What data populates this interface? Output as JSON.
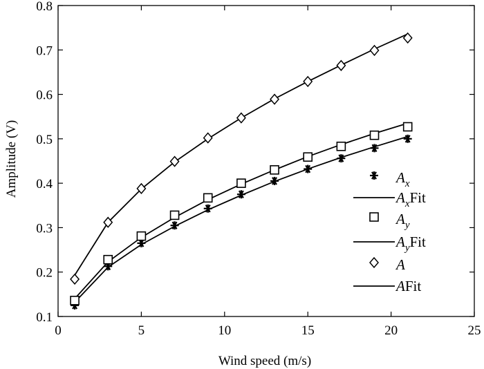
{
  "chart_data": {
    "type": "scatter",
    "xlabel": "Wind speed (m/s)",
    "ylabel": "Amplitude (V)",
    "xlim": [
      0,
      25
    ],
    "ylim": [
      0.1,
      0.8
    ],
    "xticks": [
      0,
      5,
      10,
      15,
      20,
      25
    ],
    "xtick_labels": [
      "0",
      "5",
      "10",
      "15",
      "20",
      "25"
    ],
    "yticks": [
      0.1,
      0.2,
      0.3,
      0.4,
      0.5,
      0.6,
      0.7,
      0.8
    ],
    "ytick_labels": [
      "0.1",
      "0.2",
      "0.3",
      "0.4",
      "0.5",
      "0.6",
      "0.7",
      "0.8"
    ],
    "grid": false,
    "legend_position": "right-middle",
    "legend": [
      {
        "main": "A",
        "sub": "x",
        "suffix": "",
        "kind": "marker",
        "marker": "asterisk"
      },
      {
        "main": "A",
        "sub": "x",
        "suffix": "Fit",
        "kind": "line",
        "marker": ""
      },
      {
        "main": "A",
        "sub": "y",
        "suffix": "",
        "kind": "marker",
        "marker": "square"
      },
      {
        "main": "A",
        "sub": "y",
        "suffix": "Fit",
        "kind": "line",
        "marker": ""
      },
      {
        "main": "A",
        "sub": "",
        "suffix": "",
        "kind": "marker",
        "marker": "diamond"
      },
      {
        "main": "A",
        "sub": "",
        "suffix": "Fit",
        "kind": "line",
        "marker": ""
      }
    ],
    "x": [
      1,
      3,
      5,
      7,
      9,
      11,
      13,
      15,
      17,
      19,
      21
    ],
    "series": [
      {
        "marker": "asterisk",
        "color": "#000000",
        "values": [
          0.125,
          0.213,
          0.265,
          0.305,
          0.343,
          0.375,
          0.405,
          0.432,
          0.456,
          0.479,
          0.5
        ]
      },
      {
        "marker": "square",
        "color": "#000000",
        "values": [
          0.136,
          0.228,
          0.281,
          0.328,
          0.367,
          0.4,
          0.43,
          0.459,
          0.483,
          0.508,
          0.527
        ]
      },
      {
        "marker": "diamond",
        "color": "#000000",
        "values": [
          0.184,
          0.312,
          0.388,
          0.449,
          0.502,
          0.547,
          0.589,
          0.629,
          0.665,
          0.699,
          0.727
        ]
      }
    ],
    "fits": [
      {
        "color": "#000000",
        "values": [
          0.132,
          0.211,
          0.262,
          0.303,
          0.34,
          0.373,
          0.404,
          0.432,
          0.458,
          0.482,
          0.505
        ]
      },
      {
        "color": "#000000",
        "values": [
          0.14,
          0.223,
          0.278,
          0.323,
          0.363,
          0.398,
          0.43,
          0.46,
          0.487,
          0.512,
          0.535
        ]
      },
      {
        "color": "#000000",
        "values": [
          0.193,
          0.312,
          0.387,
          0.448,
          0.5,
          0.547,
          0.59,
          0.629,
          0.666,
          0.702,
          0.736
        ]
      }
    ]
  }
}
